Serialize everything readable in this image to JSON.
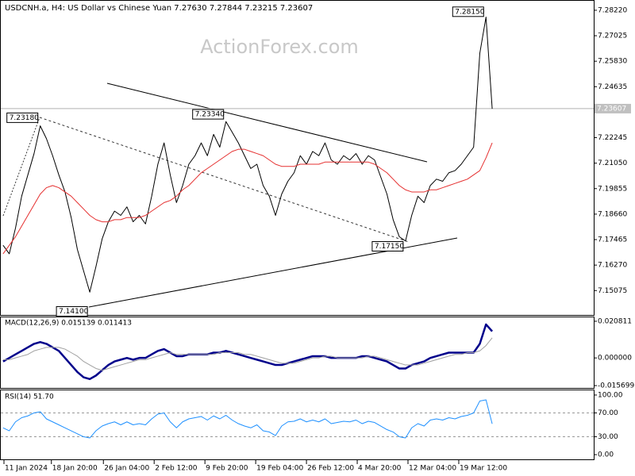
{
  "chart_data": [
    {
      "type": "line",
      "title": "USDCNH.a, H4:  US Dollar vs Chinese Yuan  7.27630 7.27844 7.23215 7.23607",
      "watermark": "ActionForex.com",
      "xlim": [
        -0.5,
        95.4
      ],
      "ylim": [
        7.13932,
        7.28626
      ],
      "yticks": [
        {
          "value": 7.2822,
          "label": "7.28220"
        },
        7.27025,
        {
          "value": 7.2583,
          "label": "7.25830"
        },
        7.24635,
        7.22245,
        {
          "value": 7.2105,
          "label": "7.21050"
        },
        7.19855,
        {
          "value": 7.1866,
          "label": "7.18660"
        },
        7.17465,
        {
          "value": 7.1627,
          "label": "7.16270"
        },
        7.15075
      ],
      "last_price": 7.23607,
      "annotations": [
        {
          "x": 6,
          "value": 7.2318,
          "label": "7.23180"
        },
        {
          "x": 36,
          "value": 7.2334,
          "label": "7.23340"
        },
        {
          "x": 65,
          "value": 7.1715,
          "label": "7.17150"
        },
        {
          "x": 14,
          "value": 7.141,
          "label": "7.14100"
        },
        {
          "x": 78,
          "value": 7.2815,
          "label": "7.28150"
        }
      ],
      "series": [
        {
          "color": "#000000",
          "values": [
            7.172,
            7.168,
            7.18,
            7.195,
            7.205,
            7.215,
            7.228,
            7.222,
            7.214,
            7.205,
            7.197,
            7.185,
            7.17,
            7.16,
            7.15,
            7.162,
            7.175,
            7.183,
            7.188,
            7.186,
            7.19,
            7.183,
            7.186,
            7.182,
            7.195,
            7.21,
            7.22,
            7.205,
            7.192,
            7.2,
            7.21,
            7.214,
            7.22,
            7.214,
            7.224,
            7.218,
            7.23,
            7.225,
            7.22,
            7.214,
            7.208,
            7.21,
            7.2,
            7.195,
            7.186,
            7.196,
            7.202,
            7.206,
            7.214,
            7.21,
            7.216,
            7.214,
            7.22,
            7.212,
            7.21,
            7.214,
            7.212,
            7.215,
            7.21,
            7.214,
            7.212,
            7.204,
            7.196,
            7.184,
            7.176,
            7.174,
            7.186,
            7.195,
            7.192,
            7.2,
            7.203,
            7.202,
            7.206,
            7.207,
            7.21,
            7.214,
            7.218,
            7.262,
            7.279,
            7.236
          ]
        },
        {
          "color": "#e53030",
          "values": [
            7.168,
            7.172,
            7.176,
            7.181,
            7.186,
            7.191,
            7.196,
            7.199,
            7.2,
            7.199,
            7.197,
            7.195,
            7.192,
            7.189,
            7.186,
            7.184,
            7.183,
            7.183,
            7.184,
            7.184,
            7.185,
            7.185,
            7.185,
            7.186,
            7.188,
            7.19,
            7.192,
            7.193,
            7.195,
            7.198,
            7.2,
            7.203,
            7.206,
            7.208,
            7.21,
            7.212,
            7.214,
            7.216,
            7.217,
            7.217,
            7.216,
            7.215,
            7.214,
            7.212,
            7.21,
            7.209,
            7.209,
            7.209,
            7.21,
            7.21,
            7.21,
            7.21,
            7.211,
            7.211,
            7.211,
            7.211,
            7.211,
            7.211,
            7.211,
            7.211,
            7.21,
            7.208,
            7.206,
            7.203,
            7.2,
            7.198,
            7.197,
            7.197,
            7.197,
            7.198,
            7.198,
            7.199,
            7.2,
            7.201,
            7.202,
            7.203,
            7.205,
            7.207,
            7.213,
            7.22
          ]
        }
      ]
    },
    {
      "type": "line",
      "title": "MACD(12,26,9) 0.015139 0.011413",
      "xlim": [
        -0.5,
        95.4
      ],
      "ylim": [
        -0.01703,
        0.02303
      ],
      "yticks": [
        0.020811,
        {
          "value": 0,
          "label": "0.000000"
        },
        -0.015699
      ],
      "series": [
        {
          "color": "#00008b",
          "width": 2.5,
          "values": [
            -0.002,
            0,
            0.002,
            0.004,
            0.006,
            0.008,
            0.009,
            0.008,
            0.006,
            0.004,
            0,
            -0.004,
            -0.008,
            -0.011,
            -0.012,
            -0.01,
            -0.007,
            -0.004,
            -0.002,
            -0.001,
            0,
            -0.001,
            0,
            0,
            0.002,
            0.004,
            0.005,
            0.003,
            0.001,
            0.001,
            0.002,
            0.002,
            0.002,
            0.002,
            0.003,
            0.003,
            0.004,
            0.003,
            0.002,
            0.001,
            0,
            -0.001,
            -0.002,
            -0.003,
            -0.004,
            -0.004,
            -0.003,
            -0.002,
            -0.001,
            0,
            0.001,
            0.001,
            0.001,
            0,
            0,
            0,
            0,
            0,
            0.001,
            0.001,
            0,
            -0.001,
            -0.002,
            -0.004,
            -0.006,
            -0.006,
            -0.004,
            -0.003,
            -0.002,
            0,
            0.001,
            0.002,
            0.003,
            0.003,
            0.003,
            0.003,
            0.003,
            0.008,
            0.019,
            0.0151
          ]
        },
        {
          "color": "#a0a0a0",
          "width": 1,
          "values": [
            -0.001,
            -0.001,
            0,
            0.001,
            0.002,
            0.004,
            0.005,
            0.006,
            0.006,
            0.006,
            0.005,
            0.003,
            0.001,
            -0.002,
            -0.004,
            -0.006,
            -0.007,
            -0.006,
            -0.005,
            -0.004,
            -0.003,
            -0.002,
            -0.001,
            -0.001,
            0,
            0.001,
            0.002,
            0.003,
            0.002,
            0.002,
            0.002,
            0.002,
            0.002,
            0.002,
            0.002,
            0.003,
            0.003,
            0.003,
            0.003,
            0.002,
            0.002,
            0.001,
            0,
            -0.001,
            -0.002,
            -0.003,
            -0.003,
            -0.003,
            -0.002,
            -0.001,
            0,
            0,
            0.001,
            0.001,
            0,
            0,
            0,
            0,
            0,
            0.001,
            0.001,
            0,
            -0.001,
            -0.002,
            -0.003,
            -0.004,
            -0.004,
            -0.004,
            -0.003,
            -0.002,
            -0.001,
            0,
            0.001,
            0.002,
            0.002,
            0.003,
            0.003,
            0.004,
            0.007,
            0.0114
          ]
        }
      ]
    },
    {
      "type": "line",
      "title": "RSI(14) 51.70",
      "xlim": [
        -0.5,
        95.4
      ],
      "ylim": [
        -9.2,
        107.9
      ],
      "yticks": [
        {
          "value": 100,
          "label": "100.00"
        },
        {
          "value": 70,
          "label": "70.00"
        },
        {
          "value": 30,
          "label": "30.00"
        },
        {
          "value": 0,
          "label": "0.00"
        }
      ],
      "levels": [
        70,
        30
      ],
      "xticks": [
        {
          "value": 0.14,
          "label": "11 Jan 2024"
        },
        {
          "value": 7.8,
          "label": "18 Jan 20:00"
        },
        {
          "value": 16.2,
          "label": "26 Jan 04:00"
        },
        {
          "value": 24.4,
          "label": "2 Feb 12:00"
        },
        {
          "value": 32.6,
          "label": "9 Feb 20:00"
        },
        {
          "value": 40.8,
          "label": "19 Feb 04:00"
        },
        {
          "value": 49,
          "label": "26 Feb 12:00"
        },
        {
          "value": 57.2,
          "label": "4 Mar 20:00"
        },
        {
          "value": 65.4,
          "label": "12 Mar 04:00"
        },
        {
          "value": 73.6,
          "label": "19 Mar 12:00"
        }
      ],
      "series": [
        {
          "color": "#1e90ff",
          "width": 1,
          "values": [
            45,
            40,
            55,
            62,
            65,
            70,
            72,
            60,
            55,
            50,
            45,
            40,
            35,
            30,
            28,
            40,
            48,
            52,
            55,
            50,
            55,
            50,
            52,
            50,
            60,
            68,
            70,
            55,
            45,
            55,
            60,
            62,
            64,
            58,
            65,
            60,
            66,
            58,
            52,
            48,
            45,
            50,
            40,
            38,
            32,
            48,
            55,
            56,
            60,
            55,
            58,
            55,
            60,
            52,
            54,
            56,
            55,
            58,
            52,
            56,
            54,
            48,
            42,
            38,
            30,
            28,
            45,
            52,
            48,
            58,
            60,
            58,
            62,
            60,
            64,
            66,
            70,
            90,
            92,
            51.7
          ]
        }
      ]
    }
  ]
}
